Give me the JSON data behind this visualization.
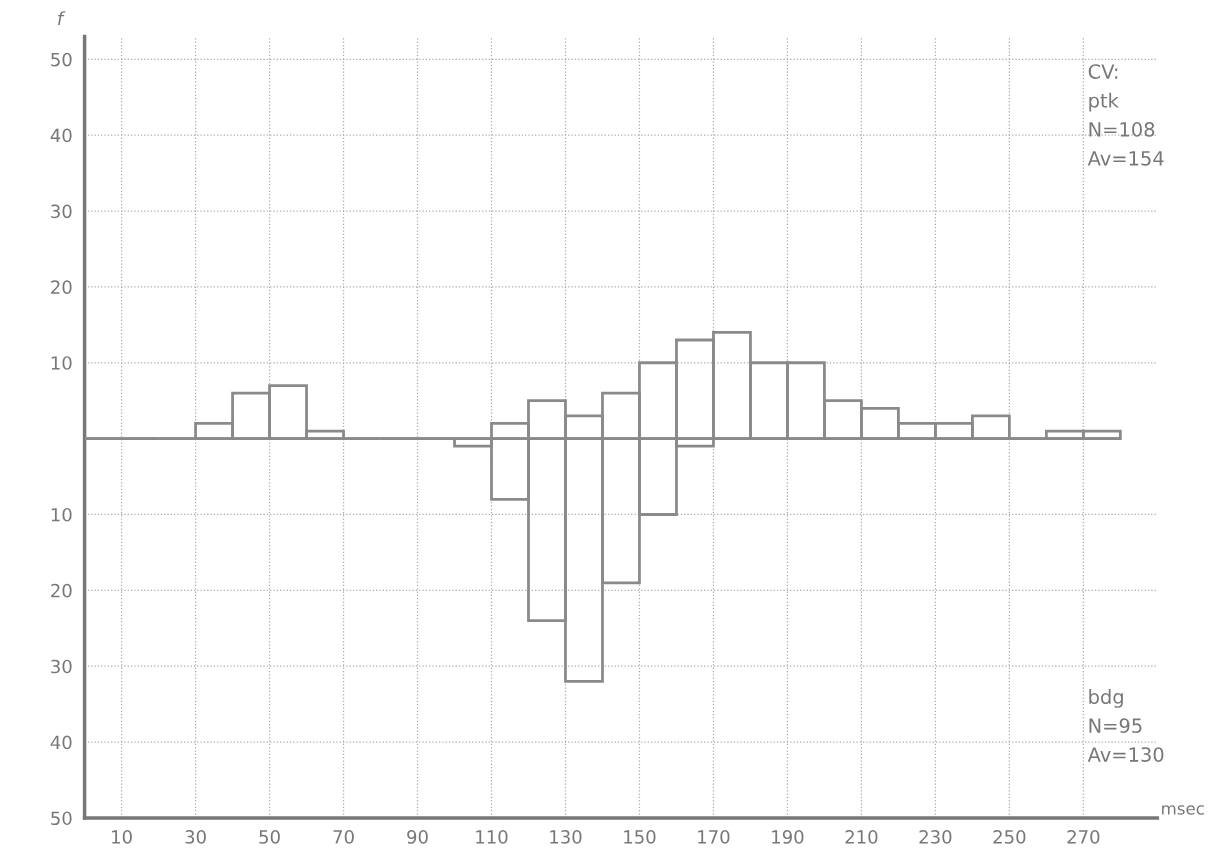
{
  "chart_data": {
    "type": "histogram",
    "ylabel": "f",
    "xlabel": "msec",
    "bins": [
      0,
      10,
      20,
      30,
      40,
      50,
      60,
      70,
      80,
      90,
      100,
      110,
      120,
      130,
      140,
      150,
      160,
      170,
      180,
      190,
      200,
      210,
      220,
      230,
      240,
      250,
      260,
      270,
      280
    ],
    "series": [
      {
        "name": "ptk",
        "color": "#8a8a8a",
        "values": [
          0,
          0,
          0,
          2,
          6,
          7,
          1,
          0,
          0,
          0,
          0,
          2,
          5,
          3,
          6,
          10,
          13,
          14,
          10,
          10,
          5,
          4,
          2,
          2,
          3,
          0,
          1,
          1
        ]
      },
      {
        "name": "bdg",
        "color": "#8a8a8a",
        "values": [
          0,
          0,
          0,
          0,
          0,
          0,
          0,
          0,
          0,
          0,
          -1,
          -8,
          -24,
          -32,
          -19,
          -10,
          -1,
          0,
          0,
          0,
          0,
          0,
          0,
          0,
          0,
          0,
          0,
          0
        ]
      }
    ],
    "annotations": [
      "CV:",
      "N=108",
      "Av=154",
      "N=95",
      "Av=130"
    ],
    "xlim": [
      0,
      290
    ],
    "ylim": [
      -50,
      53
    ],
    "xticks": [
      10,
      30,
      50,
      70,
      90,
      110,
      130,
      150,
      170,
      190,
      210,
      230,
      250,
      270
    ],
    "yticks": [
      {
        "value": -50,
        "label": "50"
      },
      {
        "value": -40,
        "label": "40"
      },
      {
        "value": -30,
        "label": "30"
      },
      {
        "value": -20,
        "label": "20"
      },
      {
        "value": -10,
        "label": "10"
      },
      10,
      20,
      30,
      40,
      50
    ],
    "grid": true
  }
}
